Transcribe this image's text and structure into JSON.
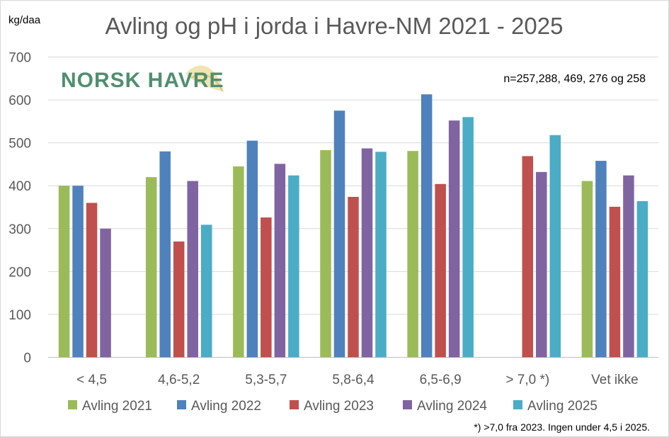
{
  "chart_data": {
    "type": "bar",
    "title": "Avling og pH i jorda i Havre-NM 2021 - 2025",
    "ylabel": "kg/daa",
    "xlabel": "",
    "ylim": [
      0,
      700
    ],
    "yticks": [
      0,
      100,
      200,
      300,
      400,
      500,
      600,
      700
    ],
    "categories": [
      "< 4,5",
      "4,6-5,2",
      "5,3-5,7",
      "5,8-6,4",
      "6,5-6,9",
      "> 7,0 *)",
      "Vet ikke"
    ],
    "series": [
      {
        "name": "Avling 2021",
        "color": "#9bbb59",
        "values": [
          400,
          420,
          445,
          483,
          481,
          null,
          411
        ]
      },
      {
        "name": "Avling 2022",
        "color": "#4f81bd",
        "values": [
          400,
          480,
          505,
          575,
          613,
          null,
          458
        ]
      },
      {
        "name": "Avling 2023",
        "color": "#c0504d",
        "values": [
          360,
          270,
          326,
          374,
          404,
          469,
          351
        ]
      },
      {
        "name": "Avling 2024",
        "color": "#8064a2",
        "values": [
          300,
          411,
          451,
          487,
          552,
          432,
          424
        ]
      },
      {
        "name": "Avling 2025",
        "color": "#4bacc6",
        "values": [
          null,
          309,
          424,
          479,
          560,
          518,
          364
        ]
      }
    ],
    "grid": true,
    "legend_position": "bottom",
    "annotation": "n=257,288, 469, 276 og 258",
    "footnote": "*) >7,0 fra 2023. Ingen under 4,5 i 2025.",
    "logo_text": "NORSK HAVRE"
  }
}
